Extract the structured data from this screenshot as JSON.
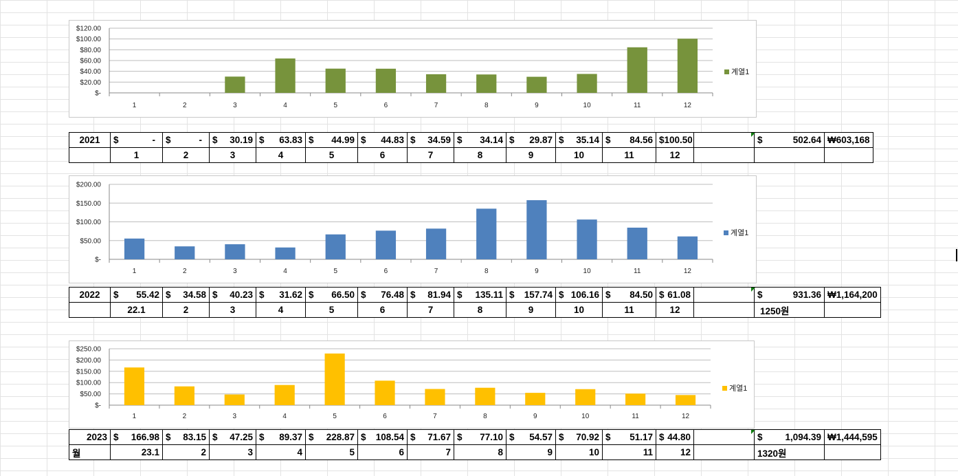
{
  "legend_label": "계열1",
  "colors": {
    "y2021": "#77933c",
    "y2022": "#4f81bd",
    "y2023": "#ffc000"
  },
  "chart_data": [
    {
      "type": "bar",
      "categories": [
        "1",
        "2",
        "3",
        "4",
        "5",
        "6",
        "7",
        "8",
        "9",
        "10",
        "11",
        "12"
      ],
      "series": [
        {
          "name": "계열1",
          "values": [
            0,
            0,
            30.19,
            63.83,
            44.99,
            44.83,
            34.59,
            34.14,
            29.87,
            35.14,
            84.56,
            100.5
          ]
        }
      ],
      "ylim": [
        0,
        120
      ],
      "yticks": [
        "$120.00",
        "$100.00",
        "$80.00",
        "$60.00",
        "$40.00",
        "$20.00",
        "$-"
      ],
      "grid": true,
      "legend": "right"
    },
    {
      "type": "bar",
      "categories": [
        "1",
        "2",
        "3",
        "4",
        "5",
        "6",
        "7",
        "8",
        "9",
        "10",
        "11",
        "12"
      ],
      "series": [
        {
          "name": "계열1",
          "values": [
            55.42,
            34.58,
            40.23,
            31.62,
            66.5,
            76.48,
            81.94,
            135.11,
            157.74,
            106.16,
            84.5,
            61.08
          ]
        }
      ],
      "ylim": [
        0,
        200
      ],
      "yticks": [
        "$200.00",
        "$150.00",
        "$100.00",
        "$50.00",
        "$-"
      ],
      "grid": true,
      "legend": "right"
    },
    {
      "type": "bar",
      "categories": [
        "1",
        "2",
        "3",
        "4",
        "5",
        "6",
        "7",
        "8",
        "9",
        "10",
        "11",
        "12"
      ],
      "series": [
        {
          "name": "계열1",
          "values": [
            166.98,
            83.15,
            47.25,
            89.37,
            228.87,
            108.54,
            71.67,
            77.1,
            54.57,
            70.92,
            51.17,
            44.8
          ]
        }
      ],
      "ylim": [
        0,
        250
      ],
      "yticks": [
        "$250.00",
        "$200.00",
        "$150.00",
        "$100.00",
        "$50.00",
        "$-"
      ],
      "grid": true,
      "legend": "right"
    }
  ],
  "tables": {
    "t2021": {
      "year": "2021",
      "values": [
        "-",
        "-",
        "30.19",
        "63.83",
        "44.99",
        "44.83",
        "34.59",
        "34.14",
        "29.87",
        "35.14",
        "84.56",
        "100.50"
      ],
      "months": [
        "1",
        "2",
        "3",
        "4",
        "5",
        "6",
        "7",
        "8",
        "9",
        "10",
        "11",
        "12"
      ],
      "total_usd": "502.64",
      "total_krw": "603,168",
      "rate": "",
      "row2_label": ""
    },
    "t2022": {
      "year": "2022",
      "values": [
        "55.42",
        "34.58",
        "40.23",
        "31.62",
        "66.50",
        "76.48",
        "81.94",
        "135.11",
        "157.74",
        "106.16",
        "84.50",
        "61.08"
      ],
      "months": [
        "22.1",
        "2",
        "3",
        "4",
        "5",
        "6",
        "7",
        "8",
        "9",
        "10",
        "11",
        "12"
      ],
      "total_usd": "931.36",
      "total_krw": "1,164,200",
      "rate": "1250원",
      "row2_label": ""
    },
    "t2023": {
      "year": "2023",
      "values": [
        "166.98",
        "83.15",
        "47.25",
        "89.37",
        "228.87",
        "108.54",
        "71.67",
        "77.10",
        "54.57",
        "70.92",
        "51.17",
        "44.80"
      ],
      "months": [
        "23.1",
        "2",
        "3",
        "4",
        "5",
        "6",
        "7",
        "8",
        "9",
        "10",
        "11",
        "12"
      ],
      "total_usd": "1,094.39",
      "total_krw": "1,444,595",
      "rate": "1320원",
      "row2_label": "월"
    }
  },
  "currency": {
    "usd": "$",
    "krw": "₩"
  }
}
